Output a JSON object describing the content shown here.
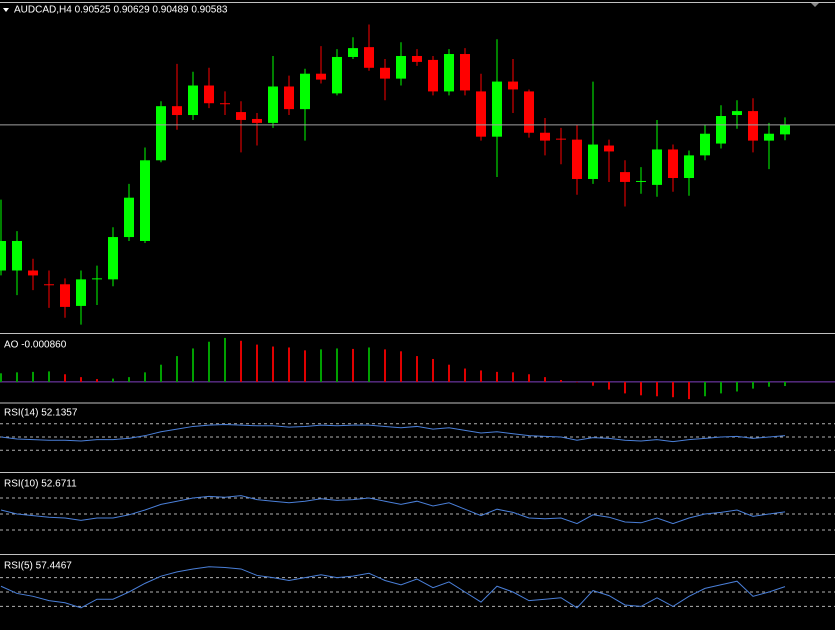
{
  "chart_data": [
    {
      "type": "candlestick",
      "title": "AUDCAD,H4  0.90525 0.90629 0.90489 0.90583",
      "up_color": "#00ff00",
      "down_color": "#ff0000",
      "ylim": [
        0.8932,
        0.9132
      ],
      "open": [
        0.89695,
        0.89695,
        0.89695,
        0.89611,
        0.89611,
        0.89479,
        0.89641,
        0.89641,
        0.89899,
        0.89875,
        0.90367,
        0.90697,
        0.90643,
        0.90823,
        0.90715,
        0.90661,
        0.90619,
        0.90595,
        0.90817,
        0.90679,
        0.90895,
        0.90775,
        0.90997,
        0.91057,
        0.90931,
        0.90865,
        0.91003,
        0.90979,
        0.90787,
        0.91015,
        0.90787,
        0.90511,
        0.90847,
        0.90787,
        0.90535,
        0.90499,
        0.90493,
        0.90253,
        0.90457,
        0.90295,
        0.90235,
        0.90217,
        0.90433,
        0.90259,
        0.90397,
        0.90469,
        0.90643,
        0.90667,
        0.90487,
        0.90525
      ],
      "high": [
        0.90127,
        0.89935,
        0.89767,
        0.89695,
        0.89647,
        0.89695,
        0.89725,
        0.89959,
        0.90223,
        0.90445,
        0.90727,
        0.90955,
        0.90907,
        0.90931,
        0.90787,
        0.90727,
        0.90655,
        0.91003,
        0.90883,
        0.90925,
        0.91063,
        0.91045,
        0.91117,
        0.91195,
        0.90985,
        0.91087,
        0.91045,
        0.91003,
        0.91045,
        0.91051,
        0.90895,
        0.91105,
        0.90985,
        0.90799,
        0.90625,
        0.90565,
        0.90583,
        0.90847,
        0.90493,
        0.90367,
        0.90325,
        0.90613,
        0.90463,
        0.90427,
        0.90583,
        0.90703,
        0.90733,
        0.90745,
        0.90595,
        0.90629
      ],
      "low": [
        0.89665,
        0.89545,
        0.89575,
        0.89467,
        0.89407,
        0.89365,
        0.89485,
        0.89599,
        0.89875,
        0.89863,
        0.90355,
        0.90553,
        0.90613,
        0.90685,
        0.90643,
        0.90415,
        0.90457,
        0.90565,
        0.90643,
        0.90487,
        0.90835,
        0.90763,
        0.90985,
        0.90913,
        0.90733,
        0.90823,
        0.90943,
        0.90763,
        0.90763,
        0.90763,
        0.90487,
        0.90265,
        0.90655,
        0.90505,
        0.90397,
        0.90343,
        0.90157,
        0.90223,
        0.90235,
        0.90085,
        0.90163,
        0.90145,
        0.90175,
        0.90151,
        0.90367,
        0.90439,
        0.90559,
        0.90415,
        0.90313,
        0.90489
      ],
      "close": [
        0.89875,
        0.89875,
        0.89665,
        0.89605,
        0.89473,
        0.89641,
        0.89647,
        0.89899,
        0.90139,
        0.90367,
        0.90697,
        0.90643,
        0.90823,
        0.90715,
        0.90709,
        0.90613,
        0.90595,
        0.90817,
        0.90679,
        0.90895,
        0.90859,
        0.90997,
        0.91051,
        0.90931,
        0.90865,
        0.91003,
        0.90967,
        0.90787,
        0.91015,
        0.90793,
        0.90511,
        0.90847,
        0.90799,
        0.90535,
        0.90487,
        0.90493,
        0.90253,
        0.90463,
        0.90421,
        0.90235,
        0.90241,
        0.90433,
        0.90259,
        0.90397,
        0.90529,
        0.90637,
        0.90667,
        0.90487,
        0.90529,
        0.90583
      ]
    },
    {
      "type": "bar",
      "title": "AO -0.000860",
      "up_color": "#00a000",
      "down_color": "#e00000",
      "baseline_color": "#8040c0",
      "ylim": [
        -0.0042,
        0.0096
      ],
      "values": [
        0.0018,
        0.002,
        0.0021,
        0.0022,
        0.0016,
        0.001,
        0.0006,
        0.0007,
        0.001,
        0.002,
        0.0036,
        0.0054,
        0.007,
        0.0084,
        0.0092,
        0.0086,
        0.0078,
        0.0074,
        0.0072,
        0.0066,
        0.0068,
        0.007,
        0.0069,
        0.0072,
        0.0068,
        0.0064,
        0.0054,
        0.0048,
        0.0036,
        0.0028,
        0.0024,
        0.0021,
        0.002,
        0.0016,
        0.001,
        0.0004,
        -0.0001,
        -0.0008,
        -0.0016,
        -0.0024,
        -0.0028,
        -0.003,
        -0.0032,
        -0.0036,
        -0.003,
        -0.0024,
        -0.002,
        -0.0014,
        -0.001,
        -0.00086
      ]
    },
    {
      "type": "line",
      "title": "RSI(14) 52.1357",
      "color": "#4a7fd8",
      "ylim": [
        0,
        100
      ],
      "levels": [
        70,
        50,
        30
      ],
      "values": [
        50,
        47,
        46,
        45,
        45,
        44,
        46,
        46,
        48,
        52,
        58,
        62,
        66,
        68,
        69,
        68,
        67,
        67,
        65,
        66,
        68,
        67,
        68,
        68,
        66,
        64,
        66,
        62,
        64,
        60,
        56,
        58,
        55,
        52,
        51,
        50,
        45,
        49,
        48,
        45,
        44,
        46,
        43,
        46,
        48,
        50,
        51,
        48,
        50,
        52.1357
      ]
    },
    {
      "type": "line",
      "title": "RSI(10) 52.6711",
      "color": "#4a7fd8",
      "ylim": [
        0,
        100
      ],
      "levels": [
        70,
        50,
        30
      ],
      "values": [
        55,
        50,
        48,
        46,
        45,
        42,
        45,
        45,
        49,
        55,
        62,
        66,
        70,
        72,
        71,
        73,
        68,
        66,
        64,
        66,
        69,
        67,
        68,
        70,
        66,
        62,
        66,
        60,
        64,
        56,
        48,
        56,
        52,
        45,
        44,
        45,
        38,
        49,
        46,
        40,
        39,
        45,
        38,
        45,
        50,
        52,
        55,
        47,
        50,
        52.6711
      ]
    },
    {
      "type": "line",
      "title": "RSI(5) 57.4467",
      "color": "#4a7fd8",
      "ylim": [
        0,
        100
      ],
      "levels": [
        70,
        50,
        30
      ],
      "values": [
        58,
        48,
        44,
        38,
        35,
        28,
        40,
        40,
        50,
        62,
        72,
        78,
        82,
        85,
        84,
        82,
        73,
        70,
        66,
        70,
        74,
        70,
        72,
        76,
        66,
        60,
        68,
        56,
        64,
        50,
        36,
        58,
        50,
        38,
        40,
        42,
        28,
        52,
        45,
        32,
        30,
        42,
        30,
        44,
        55,
        60,
        65,
        44,
        50,
        57.4467
      ]
    }
  ]
}
